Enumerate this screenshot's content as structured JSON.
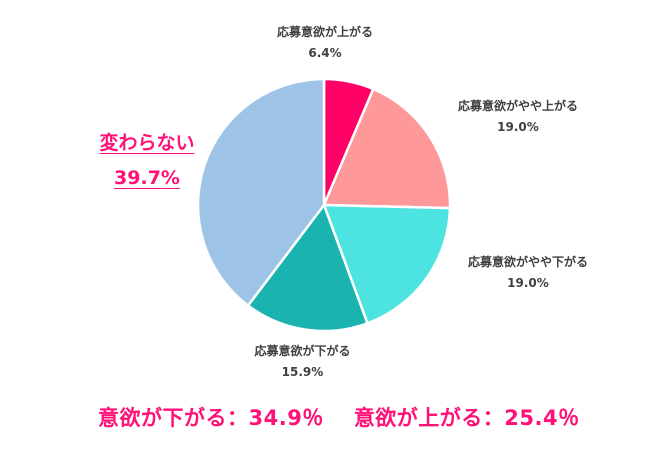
{
  "chart_data": {
    "type": "pie",
    "title": "",
    "categories": [
      "応募意欲が上がる",
      "応募意欲がやや上がる",
      "応募意欲がやや下がる",
      "応募意欲が下がる",
      "変わらない"
    ],
    "values": [
      6.4,
      19.0,
      19.0,
      15.9,
      39.7
    ],
    "colors": [
      "#ff0066",
      "#ff9999",
      "#4de3e0",
      "#1ab3b0",
      "#9dc3e6"
    ],
    "start_angle": "12 o'clock, clockwise",
    "legend": "none (direct labels)"
  },
  "labels": [
    {
      "name": "応募意欲が上がる",
      "pct": "6.4%"
    },
    {
      "name": "応募意欲がやや上がる",
      "pct": "19.0%"
    },
    {
      "name": "応募意欲がやや下がる",
      "pct": "19.0%"
    },
    {
      "name": "応募意欲が下がる",
      "pct": "15.9%"
    },
    {
      "name": "変わらない",
      "pct": "39.7%"
    }
  ],
  "summary": {
    "down": "意欲が下がる：34.9％",
    "up": "意欲が上がる：25.4％"
  },
  "colors": {
    "accent": "#ff1177",
    "label_text": "#404040"
  }
}
